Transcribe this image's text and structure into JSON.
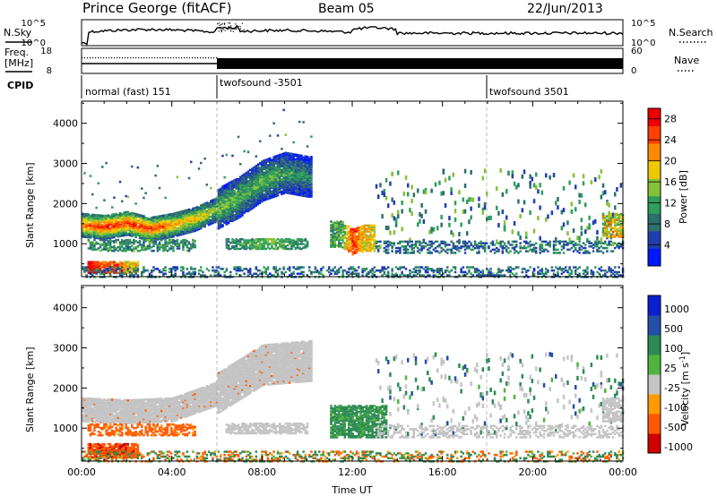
{
  "header": {
    "station": "Prince George (fitACF)",
    "beam": "Beam 05",
    "date": "22/Jun/2013"
  },
  "noise_panel": {
    "left_label": "N.Sky",
    "right_label": "N.Search",
    "left_ticks": [
      "10^5",
      "10^0"
    ],
    "right_ticks": [
      "10^5",
      "10^0"
    ]
  },
  "freq_panel": {
    "left_label_1": "Freq.",
    "left_label_2": "[MHz]",
    "right_label": "Nave",
    "left_ticks": [
      "18",
      "8"
    ],
    "right_ticks": [
      "60",
      "0"
    ]
  },
  "cpid": {
    "label": "CPID",
    "segments": [
      {
        "name": "normal (fast) 151",
        "start_hour": 0
      },
      {
        "name": "twofsound -3501",
        "start_hour": 6
      },
      {
        "name": "twofsound 3501",
        "start_hour": 18
      }
    ]
  },
  "axes": {
    "x_label": "Time UT",
    "x_ticks": [
      "00:00",
      "04:00",
      "08:00",
      "12:00",
      "16:00",
      "20:00",
      "00:00"
    ],
    "y_label": "Slant Range [km]",
    "y_ticks": [
      "1000",
      "2000",
      "3000",
      "4000"
    ]
  },
  "colors": {
    "grey": "#bcbcbc",
    "power": [
      "#0018ff",
      "#1f3fb0",
      "#2d6e6e",
      "#2e9e5a",
      "#86c13a",
      "#f0c800",
      "#ff8a00",
      "#ff4000",
      "#ee0000"
    ],
    "velocity": [
      "#d00000",
      "#ff5a00",
      "#ff9a00",
      "#c4c4c4",
      "#4fb43c",
      "#2d8a55",
      "#234fa8",
      "#0a1fd0"
    ]
  },
  "chart_data": [
    {
      "type": "heatmap",
      "title": "",
      "xlabel": "Time UT",
      "ylabel": "Slant Range [km]",
      "xlim": [
        0,
        24
      ],
      "ylim": [
        180,
        4550
      ],
      "colorbar": {
        "label": "Power [dB]",
        "ticks": [
          "4",
          "8",
          "12",
          "16",
          "20",
          "24",
          "28"
        ],
        "range": [
          0,
          30
        ]
      },
      "features": [
        {
          "desc": "main echo band",
          "x": [
            0,
            1,
            2,
            3,
            4,
            5,
            6,
            7,
            8,
            9,
            10
          ],
          "range_km": [
            1500,
            1450,
            1550,
            1400,
            1500,
            1650,
            1900,
            2200,
            2600,
            2800,
            2700
          ],
          "power_db": [
            24,
            28,
            26,
            27,
            22,
            20,
            16,
            14,
            14,
            12,
            10
          ]
        },
        {
          "desc": "near range echoes",
          "x": [
            0.5,
            1,
            1.5,
            2
          ],
          "range_km": [
            450,
            420,
            400,
            450
          ],
          "power_db": [
            28,
            24,
            26,
            18
          ]
        },
        {
          "desc": "1000 km band",
          "x": [
            6.5,
            7.5,
            8.5,
            9.5
          ],
          "range_km": [
            1000,
            1050,
            1000,
            1050
          ],
          "power_db": [
            10,
            12,
            14,
            10
          ]
        },
        {
          "desc": "midday echoes",
          "x": [
            11.5,
            12,
            12.5
          ],
          "range_km": [
            1200,
            1000,
            1100
          ],
          "power_db": [
            12,
            26,
            18
          ]
        }
      ]
    },
    {
      "type": "heatmap",
      "title": "",
      "xlabel": "Time UT",
      "ylabel": "Slant Range [km]",
      "xlim": [
        0,
        24
      ],
      "ylim": [
        180,
        4550
      ],
      "colorbar": {
        "label": "Velocity [m s^-1]",
        "ticks": [
          "1000",
          "500",
          "100",
          "25",
          "-25",
          "-100",
          "-500",
          "-1000"
        ]
      },
      "features": [
        {
          "desc": "ground scatter band",
          "x": [
            0,
            2,
            4,
            6,
            8,
            10
          ],
          "range_km": [
            1500,
            1450,
            1500,
            1900,
            2600,
            2700
          ],
          "velocity": [
            0,
            0,
            0,
            0,
            0,
            0
          ]
        },
        {
          "desc": "near range negative velocity",
          "x": [
            0.5,
            1,
            1.5,
            2
          ],
          "range_km": [
            500,
            450,
            420,
            450
          ],
          "velocity": [
            -300,
            -400,
            -500,
            -300
          ]
        },
        {
          "desc": "midday positive velocity",
          "x": [
            12,
            13,
            16,
            17
          ],
          "range_km": [
            1200,
            1500,
            1600,
            2000
          ],
          "velocity": [
            100,
            200,
            300,
            500
          ]
        }
      ]
    }
  ]
}
